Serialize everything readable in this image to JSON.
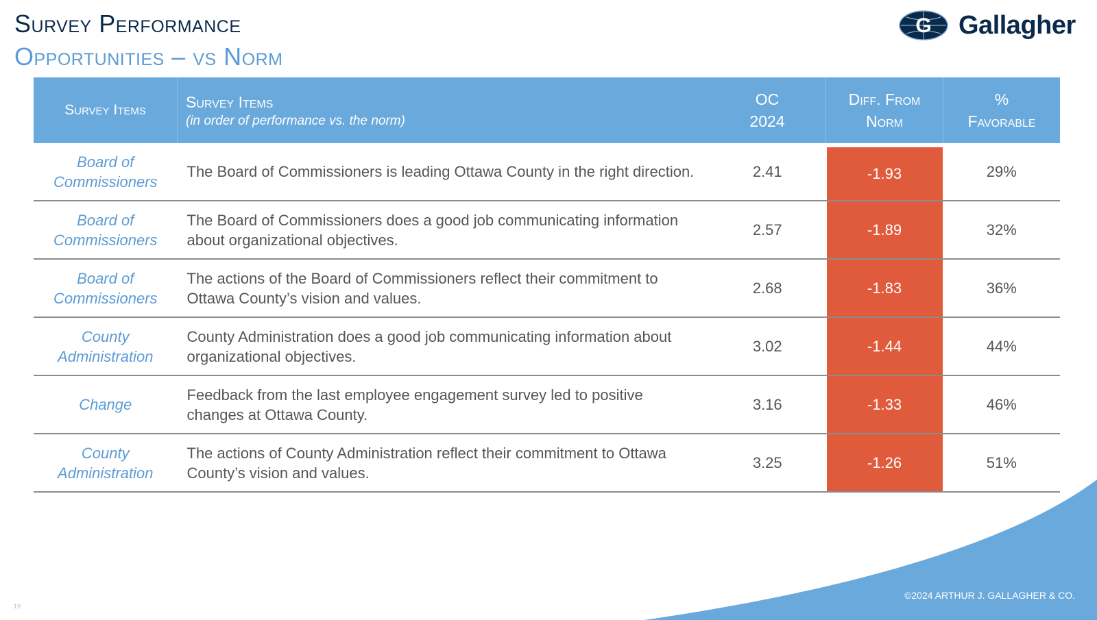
{
  "header": {
    "title": "Survey Performance",
    "subtitle": "Opportunities – vs Norm"
  },
  "logo": {
    "text": "Gallagher",
    "icon": "globe-g-icon"
  },
  "table": {
    "columns": {
      "category": "Survey Items",
      "item": "Survey Items",
      "item_note": "(in order of performance vs. the norm)",
      "score_line1": "OC",
      "score_line2": "2024",
      "diff_line1": "Diff. From",
      "diff_line2": "Norm",
      "favorable_line1": "%",
      "favorable_line2": "Favorable"
    },
    "rows": [
      {
        "category": "Board of Commissioners",
        "item": "The Board of Commissioners is leading Ottawa County in the right direction.",
        "score": "2.41",
        "diff": "-1.93",
        "favorable": "29%"
      },
      {
        "category": "Board of Commissioners",
        "item": "The Board of Commissioners does a good job communicating information about organizational objectives.",
        "score": "2.57",
        "diff": "-1.89",
        "favorable": "32%"
      },
      {
        "category": "Board of Commissioners",
        "item": "The actions of the Board of Commissioners reflect their commitment to Ottawa County’s vision and values.",
        "score": "2.68",
        "diff": "-1.83",
        "favorable": "36%"
      },
      {
        "category": "County Administration",
        "item": "County Administration does a good job communicating information about organizational objectives.",
        "score": "3.02",
        "diff": "-1.44",
        "favorable": "44%"
      },
      {
        "category": "Change",
        "item": "Feedback from the last employee engagement survey led to positive changes at Ottawa County.",
        "score": "3.16",
        "diff": "-1.33",
        "favorable": "46%"
      },
      {
        "category": "County Administration",
        "item": "The actions of County Administration reflect their commitment to Ottawa County’s vision and values.",
        "score": "3.25",
        "diff": "-1.26",
        "favorable": "51%"
      }
    ]
  },
  "footer": {
    "copyright": "©2024 ARTHUR J. GALLAGHER & CO.",
    "page_number": "19"
  },
  "colors": {
    "navy": "#0b2a4a",
    "accent_blue": "#5b9bd5",
    "header_blue": "#6aa9dc",
    "negative_red": "#e05a3c"
  }
}
